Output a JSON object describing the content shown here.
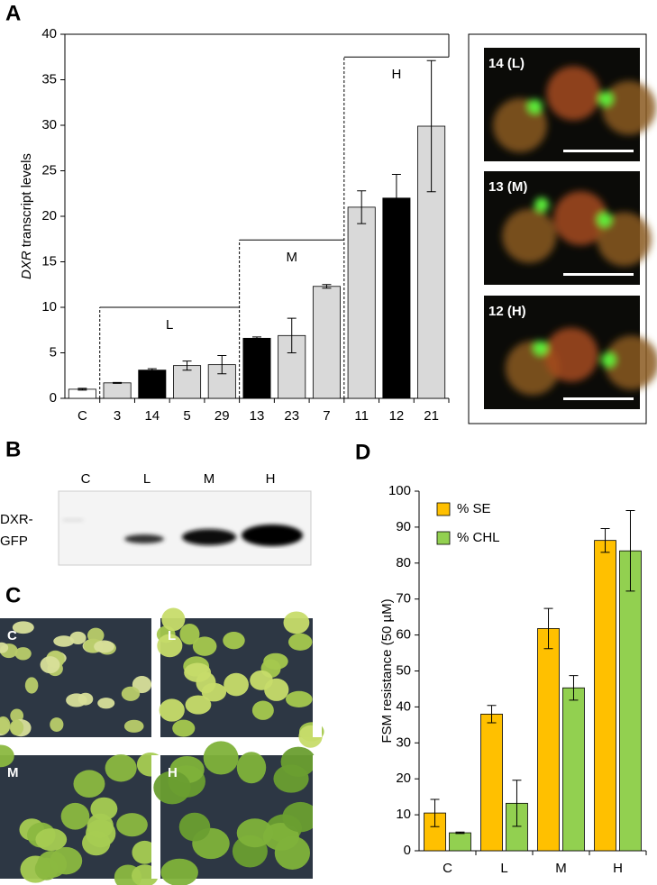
{
  "panel_letters": [
    "A",
    "B",
    "C",
    "D"
  ],
  "chart_data": [
    {
      "type": "bar",
      "ylabel_italic": "DXR",
      "ylabel": "transcript levels",
      "categories": [
        "C",
        "3",
        "14",
        "5",
        "29",
        "13",
        "23",
        "7",
        "11",
        "12",
        "21"
      ],
      "series": [
        {
          "colors": [
            "#ffffff",
            "#d9d9d9",
            "#000000",
            "#d9d9d9",
            "#d9d9d9",
            "#000000",
            "#d9d9d9",
            "#d9d9d9",
            "#d9d9d9",
            "#000000",
            "#d9d9d9"
          ],
          "values": [
            1.0,
            1.7,
            3.1,
            3.6,
            3.7,
            6.6,
            6.9,
            12.3,
            21.0,
            22.0,
            29.9
          ],
          "errors": [
            0.1,
            0.05,
            0.15,
            0.5,
            1.0,
            0.15,
            1.9,
            0.2,
            1.8,
            2.6,
            7.2
          ]
        }
      ],
      "groups": [
        {
          "label": "L",
          "first": 1,
          "level": 10
        },
        {
          "label": "M",
          "first": 5,
          "level": 17.4
        },
        {
          "label": "H",
          "first": 8,
          "level": 37.5
        }
      ],
      "ylim": [
        0,
        40
      ],
      "yticks": [
        0,
        5,
        10,
        15,
        20,
        25,
        30,
        35,
        40
      ]
    },
    {
      "type": "bar",
      "ylabel": "FSM resistance (50 µM)",
      "categories": [
        "C",
        "L",
        "M",
        "H"
      ],
      "series": [
        {
          "name": "% SE",
          "color": "#ffc000",
          "values": [
            10.5,
            38,
            61.8,
            86.3
          ],
          "errors": [
            3.8,
            2.4,
            5.6,
            3.3
          ]
        },
        {
          "name": "% CHL",
          "color": "#92d050",
          "values": [
            5,
            13.2,
            45.3,
            83.4
          ],
          "errors": [
            0.2,
            6.4,
            3.4,
            11.2
          ]
        }
      ],
      "ylim": [
        0,
        100
      ],
      "yticks": [
        0,
        10,
        20,
        30,
        40,
        50,
        60,
        70,
        80,
        90,
        100
      ]
    }
  ],
  "micrographs": [
    "14 (L)",
    "13 (M)",
    "12 (H)"
  ],
  "blot": {
    "columns": [
      "C",
      "L",
      "M",
      "H"
    ],
    "row_label": [
      "DXR-",
      "GFP"
    ]
  },
  "seedlings": [
    "C",
    "L",
    "M",
    "H"
  ]
}
